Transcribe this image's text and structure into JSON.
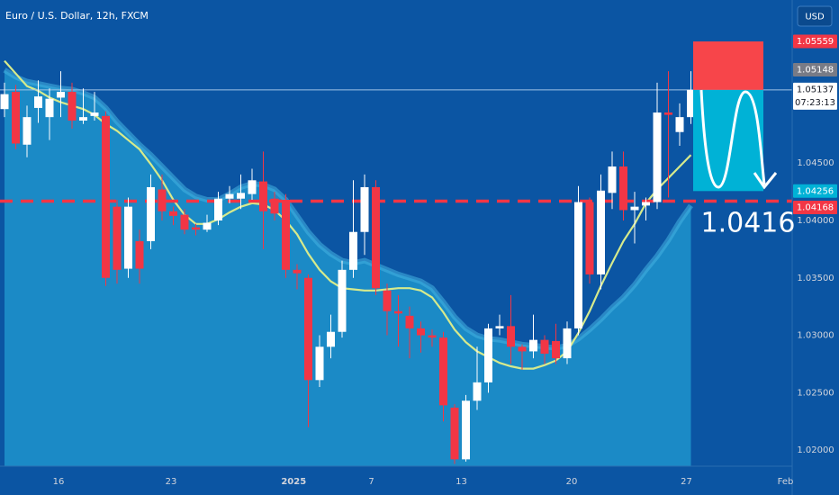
{
  "chart_data": {
    "type": "candlestick",
    "title": "Euro / U.S. Dollar, 12h, FXCM",
    "currency": "USD",
    "annotation": "1.0416",
    "ylim": [
      1.0186,
      1.0592
    ],
    "yticks": [
      {
        "value": 1.045,
        "label": "1.04500"
      },
      {
        "value": 1.04,
        "label": "1.04000"
      },
      {
        "value": 1.035,
        "label": "1.03500"
      },
      {
        "value": 1.03,
        "label": "1.03000"
      },
      {
        "value": 1.025,
        "label": "1.02500"
      },
      {
        "value": 1.02,
        "label": "1.02000"
      }
    ],
    "xlim": [
      -0.4,
      70
    ],
    "xticks": [
      {
        "value": 4.8,
        "label": "16"
      },
      {
        "value": 14.8,
        "label": "23"
      },
      {
        "value": 25.7,
        "label": "2025",
        "bold": true
      },
      {
        "value": 32.6,
        "label": "7"
      },
      {
        "value": 40.6,
        "label": "13"
      },
      {
        "value": 50.4,
        "label": "20"
      },
      {
        "value": 60.6,
        "label": "27"
      },
      {
        "value": 69.4,
        "label": "Feb"
      }
    ],
    "up_color": "#ffffff",
    "down_color": "#f23645",
    "open": [
      1.0497,
      1.0512,
      1.0466,
      1.0498,
      1.049,
      1.0507,
      1.0512,
      1.0487,
      1.0491,
      1.0491,
      1.0412,
      1.0358,
      1.0382,
      1.0382,
      1.0427,
      1.0408,
      1.0405,
      1.0394,
      1.0392,
      1.04,
      1.0419,
      1.0419,
      1.0423,
      1.0434,
      1.0419,
      1.0418,
      1.0357,
      1.035,
      1.0261,
      1.029,
      1.0303,
      1.0357,
      1.039,
      1.0429,
      1.0339,
      1.0321,
      1.0317,
      1.0306,
      1.03,
      1.0298,
      1.0237,
      1.0192,
      1.0243,
      1.0259,
      1.0306,
      1.0308,
      1.029,
      1.0286,
      1.0296,
      1.0295,
      1.028,
      1.0306,
      1.0416,
      1.0353,
      1.0424,
      1.0447,
      1.0409,
      1.0413,
      1.0416,
      1.0494,
      1.0477,
      1.049
    ],
    "high": [
      1.052,
      1.0518,
      1.05,
      1.0522,
      1.0515,
      1.053,
      1.052,
      1.0515,
      1.0512,
      1.0495,
      1.0418,
      1.042,
      1.0392,
      1.044,
      1.044,
      1.0412,
      1.041,
      1.0397,
      1.0405,
      1.0425,
      1.043,
      1.044,
      1.0445,
      1.046,
      1.0425,
      1.0423,
      1.0362,
      1.0353,
      1.03,
      1.0318,
      1.0365,
      1.0435,
      1.044,
      1.0435,
      1.0345,
      1.0335,
      1.0325,
      1.0312,
      1.0305,
      1.0303,
      1.024,
      1.0248,
      1.029,
      1.031,
      1.0318,
      1.0335,
      1.0292,
      1.0318,
      1.03,
      1.031,
      1.0312,
      1.043,
      1.042,
      1.044,
      1.046,
      1.046,
      1.0425,
      1.042,
      1.052,
      1.053,
      1.0502,
      1.053
    ],
    "low": [
      1.049,
      1.0462,
      1.0455,
      1.0485,
      1.047,
      1.049,
      1.048,
      1.0484,
      1.0487,
      1.0343,
      1.0345,
      1.035,
      1.0345,
      1.0375,
      1.04,
      1.0396,
      1.0388,
      1.0387,
      1.039,
      1.0396,
      1.0415,
      1.041,
      1.0418,
      1.0375,
      1.04,
      1.035,
      1.034,
      1.022,
      1.0255,
      1.028,
      1.0298,
      1.035,
      1.037,
      1.0335,
      1.03,
      1.029,
      1.028,
      1.0285,
      1.029,
      1.0225,
      1.0188,
      1.019,
      1.0235,
      1.025,
      1.03,
      1.0275,
      1.027,
      1.028,
      1.0275,
      1.0275,
      1.0275,
      1.03,
      1.0345,
      1.034,
      1.041,
      1.04,
      1.038,
      1.04,
      1.041,
      1.042,
      1.0465,
      1.0484
    ],
    "close": [
      1.051,
      1.0467,
      1.049,
      1.0508,
      1.0506,
      1.0512,
      1.0487,
      1.049,
      1.0494,
      1.035,
      1.0357,
      1.0412,
      1.0358,
      1.0429,
      1.0408,
      1.0404,
      1.0392,
      1.0392,
      1.0398,
      1.0419,
      1.0423,
      1.0424,
      1.0435,
      1.0408,
      1.0406,
      1.0357,
      1.0354,
      1.0261,
      1.029,
      1.0303,
      1.0357,
      1.039,
      1.0429,
      1.0341,
      1.0321,
      1.0319,
      1.0306,
      1.03,
      1.0298,
      1.0239,
      1.0192,
      1.0243,
      1.0259,
      1.0306,
      1.0308,
      1.029,
      1.0286,
      1.0296,
      1.0284,
      1.028,
      1.0306,
      1.0416,
      1.0353,
      1.0426,
      1.0447,
      1.0409,
      1.0412,
      1.0416,
      1.0494,
      1.0492,
      1.049,
      1.05137
    ],
    "overlays": [
      {
        "type": "area",
        "color": "#1b8ac6",
        "edge_color": "#45b3e2",
        "values": [
          1.0531,
          1.0525,
          1.0521,
          1.0519,
          1.0517,
          1.0515,
          1.0514,
          1.0511,
          1.0507,
          1.0498,
          1.0486,
          1.0476,
          1.0466,
          1.0457,
          1.0447,
          1.0437,
          1.0427,
          1.0421,
          1.0418,
          1.0418,
          1.0423,
          1.0429,
          1.0432,
          1.0431,
          1.0427,
          1.0418,
          1.0404,
          1.039,
          1.0379,
          1.0371,
          1.0365,
          1.0363,
          1.0365,
          1.0361,
          1.0357,
          1.0353,
          1.035,
          1.0347,
          1.0341,
          1.0329,
          1.0316,
          1.0306,
          1.03,
          1.0297,
          1.0296,
          1.0294,
          1.0292,
          1.0291,
          1.029,
          1.0289,
          1.0291,
          1.0297,
          1.0305,
          1.0314,
          1.0324,
          1.0333,
          1.0344,
          1.0357,
          1.0369,
          1.0383,
          1.0399,
          1.0413
        ]
      },
      {
        "type": "line",
        "color": "#d6ea8c",
        "values": [
          1.0539,
          1.0528,
          1.0517,
          1.0513,
          1.0507,
          1.0503,
          1.05,
          1.0497,
          1.0492,
          1.0484,
          1.0478,
          1.047,
          1.0462,
          1.0449,
          1.0435,
          1.0418,
          1.0405,
          1.0397,
          1.0397,
          1.0401,
          1.0407,
          1.0412,
          1.0415,
          1.0414,
          1.0409,
          1.04,
          1.0388,
          1.0371,
          1.0357,
          1.0347,
          1.0341,
          1.034,
          1.0339,
          1.0339,
          1.034,
          1.0341,
          1.0341,
          1.0339,
          1.0333,
          1.032,
          1.0305,
          1.0294,
          1.0286,
          1.0281,
          1.0276,
          1.0273,
          1.0271,
          1.0271,
          1.0274,
          1.0278,
          1.0286,
          1.0302,
          1.0321,
          1.0343,
          1.0363,
          1.0382,
          1.0397,
          1.0415,
          1.0427,
          1.0437,
          1.0447,
          1.0457
        ]
      }
    ],
    "levels": [
      {
        "value": 1.05137,
        "color": "#9fc3e6",
        "style": "solid"
      },
      {
        "value": 1.04168,
        "color": "#f23645",
        "style": "dashed"
      }
    ],
    "position": {
      "stop": 1.05559,
      "entry": 1.05137,
      "target": 1.04256,
      "stop_color": "#f7454a",
      "target_color": "#00b2d6"
    },
    "price_labels": [
      {
        "value": 1.05559,
        "color": "#f23645"
      },
      {
        "value": 1.05148,
        "color": "#787b86"
      },
      {
        "value": 1.05137,
        "color": "#ffffff",
        "countdown": "07:23:13"
      },
      {
        "value": 1.04256,
        "color": "#00b2d6"
      },
      {
        "value": 1.04168,
        "color": "#f23645"
      }
    ]
  }
}
